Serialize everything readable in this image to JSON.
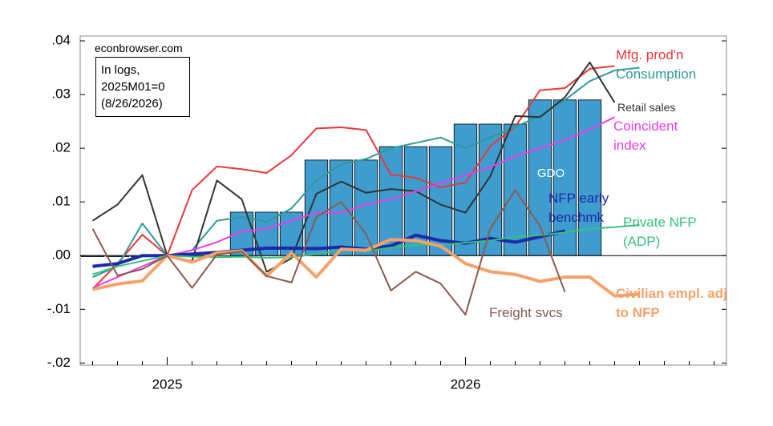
{
  "chart_data": {
    "type": "line",
    "source": "econbrowser.com",
    "note": [
      "In logs,",
      "2025M01=0",
      "(8/26/2026)"
    ],
    "categories": [
      null,
      null,
      null,
      "2025",
      null,
      null,
      null,
      null,
      null,
      null,
      null,
      null,
      null,
      null,
      null,
      "2026",
      null,
      null,
      null,
      null,
      null,
      null,
      null,
      null,
      null,
      null
    ],
    "ylim": [
      -0.0204,
      0.0409
    ],
    "yticks": [
      {
        "value": 0.04,
        "label": ".04"
      },
      {
        "value": 0.03,
        "label": ".03"
      },
      {
        "value": 0.02,
        "label": ".02"
      },
      {
        "value": 0.01,
        "label": ".01"
      },
      {
        "value": 0,
        "label": ".00"
      },
      {
        "value": -0.01,
        "label": "-.01"
      },
      {
        "value": -0.02,
        "label": "-.02"
      }
    ],
    "series": [
      {
        "name": "Mfg. prod'n",
        "color": "#e8383a",
        "line_width": 2,
        "values": [
          -0.0062,
          -0.0015,
          0.0039,
          0,
          0.0122,
          0.0166,
          0.0161,
          0.0154,
          0.0187,
          0.0237,
          0.0239,
          0.0234,
          0.0151,
          0.0145,
          0.0127,
          0.0136,
          0.0204,
          0.024,
          0.0308,
          0.0312,
          0.0348,
          0.0353,
          null,
          null,
          null,
          null
        ]
      },
      {
        "name": "Consumption",
        "color": "#2f9b98",
        "line_width": 2,
        "values": [
          -0.004,
          -0.002,
          0.006,
          0,
          0.001,
          0.0065,
          0.0072,
          0.0063,
          0.0088,
          0.014,
          0.017,
          0.018,
          0.02,
          0.021,
          0.022,
          0.02,
          0.022,
          0.024,
          0.026,
          0.029,
          0.0325,
          0.0345,
          0.035,
          null,
          null,
          null
        ]
      },
      {
        "name": "Retail sales",
        "color": "#333333",
        "line_width": 2,
        "values": [
          0.0065,
          0.0095,
          0.015,
          0,
          -0.001,
          0.014,
          0.0105,
          -0.003,
          -0.0005,
          0.0115,
          0.0138,
          0.0117,
          0.0124,
          0.012,
          0.0095,
          0.008,
          0.0148,
          0.026,
          0.0258,
          0.0295,
          0.036,
          0.0285,
          null,
          null,
          null,
          null
        ]
      },
      {
        "name": "Coincident index",
        "color": "#e83ee8",
        "line_width": 2,
        "values": [
          -0.006,
          -0.004,
          -0.002,
          0,
          0.001,
          0.0025,
          0.0045,
          0.005,
          0.0065,
          0.008,
          0.008,
          0.0095,
          0.0105,
          0.012,
          0.0135,
          0.015,
          0.0165,
          0.0185,
          0.02,
          0.0215,
          0.0235,
          0.0258,
          null,
          null,
          null,
          null
        ]
      },
      {
        "name": "GDO",
        "color": "#3e9ccf",
        "style": "bar",
        "values": [
          -0.0002,
          -0.0002,
          -0.0002,
          0,
          0,
          0,
          0.0081,
          0.0081,
          0.0081,
          0.0178,
          0.0178,
          0.0178,
          0.0203,
          0.0203,
          0.0203,
          0.0245,
          0.0245,
          0.0245,
          0.029,
          0.029,
          0.029,
          null,
          null,
          null,
          null,
          null
        ]
      },
      {
        "name": "NFP early benchmk",
        "color": "#1a2aa8",
        "line_width": 4,
        "values": [
          -0.002,
          -0.0015,
          0,
          0,
          0.0003,
          0.0006,
          0.001,
          0.0014,
          0.0014,
          0.0013,
          0.0016,
          0.0012,
          0.0018,
          0.0038,
          0.0028,
          0.0023,
          0.0032,
          0.0025,
          0.0035,
          0.0046,
          null,
          null,
          null,
          null,
          null,
          null
        ]
      },
      {
        "name": "Private NFP (ADP)",
        "color": "#33c37a",
        "line_width": 2,
        "values": [
          -0.0035,
          -0.002,
          -0.001,
          0,
          -0.0002,
          -0.0003,
          -0.0002,
          -0.0004,
          -0.0003,
          0.0003,
          0.001,
          0.0008,
          0.0015,
          0.002,
          0.002,
          0.0024,
          0.0028,
          0.0035,
          0.0038,
          0.0043,
          0.005,
          0.0053,
          0.0057,
          null,
          null,
          null
        ]
      },
      {
        "name": "Civilian empl. adj to NFP",
        "color": "#f5a26a",
        "line_width": 4,
        "values": [
          -0.0063,
          -0.0053,
          -0.0047,
          0,
          -0.0012,
          0.0005,
          0.0009,
          -0.0038,
          0.0005,
          -0.004,
          0.0012,
          0.001,
          0.003,
          0.0028,
          0.0018,
          -0.0015,
          -0.003,
          -0.0035,
          -0.0048,
          -0.004,
          -0.004,
          -0.0075,
          -0.0072,
          null,
          null,
          null
        ]
      },
      {
        "name": "Freight svcs",
        "color": "#8c5a50",
        "line_width": 2,
        "values": [
          0.005,
          -0.0037,
          -0.0025,
          0,
          -0.006,
          0.0002,
          0.0008,
          -0.0038,
          -0.005,
          0.0072,
          0.01,
          0.004,
          -0.0065,
          -0.003,
          -0.0052,
          -0.011,
          0.005,
          0.0122,
          0.0055,
          -0.0068,
          null,
          null,
          null,
          null,
          null,
          null
        ]
      }
    ]
  }
}
